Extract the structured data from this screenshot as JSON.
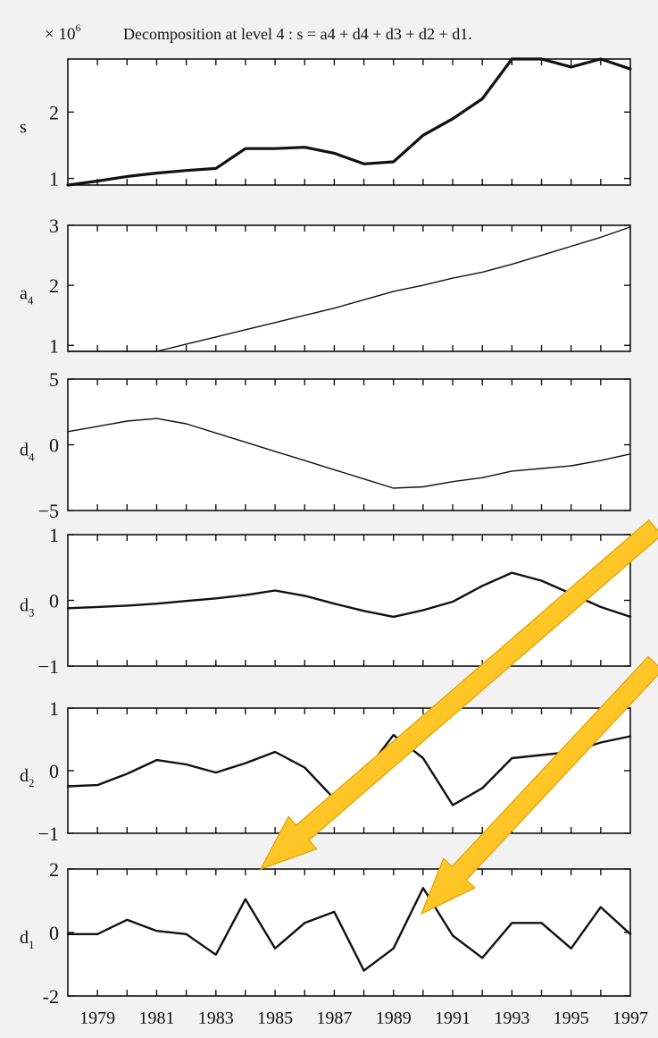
{
  "chart_data": {
    "type": "line",
    "title": "Decomposition at level 4 : s = a4 + d4 + d3 + d2 + d1.",
    "scale_label": {
      "base": "× 10",
      "exp": "6"
    },
    "x_ticks": [
      "1979",
      "1981",
      "1983",
      "1985",
      "1987",
      "1989",
      "1991",
      "1993",
      "1995",
      "1997"
    ],
    "x": [
      1978,
      1979,
      1980,
      1981,
      1982,
      1983,
      1984,
      1985,
      1986,
      1987,
      1988,
      1989,
      1990,
      1991,
      1992,
      1993,
      1994,
      1995,
      1996,
      1997
    ],
    "panels": [
      {
        "name": "s",
        "sub": "",
        "ylim": [
          0.9,
          2.8
        ],
        "yticks": [
          {
            "v": 1,
            "label": "1"
          },
          {
            "v": 2,
            "label": "2"
          }
        ],
        "values": [
          0.9,
          0.96,
          1.03,
          1.08,
          1.12,
          1.15,
          1.45,
          1.45,
          1.47,
          1.38,
          1.22,
          1.25,
          1.65,
          1.9,
          2.2,
          2.8,
          2.8,
          2.68,
          2.8,
          2.65
        ]
      },
      {
        "name": "a",
        "sub": "4",
        "ylim": [
          0.9,
          3.0
        ],
        "yticks": [
          {
            "v": 1,
            "label": "1"
          },
          {
            "v": 2,
            "label": "2"
          },
          {
            "v": 3,
            "label": "3"
          }
        ],
        "values": [
          0.9,
          0.9,
          0.9,
          0.9,
          1.02,
          1.14,
          1.26,
          1.38,
          1.5,
          1.62,
          1.76,
          1.9,
          2.0,
          2.12,
          2.22,
          2.35,
          2.5,
          2.65,
          2.8,
          2.97
        ]
      },
      {
        "name": "d",
        "sub": "4",
        "ylim": [
          -5,
          5
        ],
        "yticks": [
          {
            "v": 5,
            "label": "5"
          },
          {
            "v": 0,
            "label": "0"
          },
          {
            "v": -5,
            "label": "−5"
          }
        ],
        "values": [
          1.0,
          1.4,
          1.8,
          2.0,
          1.6,
          0.9,
          0.2,
          -0.5,
          -1.2,
          -1.9,
          -2.6,
          -3.3,
          -3.2,
          -2.8,
          -2.5,
          -2.0,
          -1.8,
          -1.6,
          -1.2,
          -0.7
        ]
      },
      {
        "name": "d",
        "sub": "3",
        "ylim": [
          -1,
          1
        ],
        "yticks": [
          {
            "v": 1,
            "label": "1"
          },
          {
            "v": 0,
            "label": "0"
          },
          {
            "v": -1,
            "label": "−1"
          }
        ],
        "values": [
          -0.12,
          -0.1,
          -0.08,
          -0.05,
          -0.01,
          0.03,
          0.08,
          0.15,
          0.07,
          -0.05,
          -0.16,
          -0.25,
          -0.15,
          -0.02,
          0.22,
          0.42,
          0.3,
          0.1,
          -0.1,
          -0.25
        ]
      },
      {
        "name": "d",
        "sub": "2",
        "ylim": [
          -1,
          1
        ],
        "yticks": [
          {
            "v": 1,
            "label": "1"
          },
          {
            "v": 0,
            "label": "0"
          },
          {
            "v": -1,
            "label": "−1"
          }
        ],
        "values": [
          -0.25,
          -0.23,
          -0.05,
          0.17,
          0.1,
          -0.03,
          0.12,
          0.3,
          0.05,
          -0.45,
          -0.05,
          0.57,
          0.2,
          -0.55,
          -0.28,
          0.2,
          0.25,
          0.3,
          0.45,
          0.55
        ]
      },
      {
        "name": "d",
        "sub": "1",
        "ylim": [
          -2,
          2
        ],
        "yticks": [
          {
            "v": 2,
            "label": "2"
          },
          {
            "v": 0,
            "label": "0"
          },
          {
            "v": -2,
            "label": "-2"
          }
        ],
        "values": [
          -0.05,
          -0.05,
          0.4,
          0.05,
          -0.05,
          -0.7,
          1.05,
          -0.5,
          0.3,
          0.65,
          -1.2,
          -0.5,
          1.4,
          -0.1,
          -0.8,
          0.3,
          0.3,
          -0.5,
          0.8,
          -0.05
        ]
      }
    ],
    "annotations": [
      {
        "type": "arrow",
        "color": "#ffc000",
        "points_to": "d1 panel peak near 1984"
      },
      {
        "type": "arrow",
        "color": "#ffc000",
        "points_to": "d1 panel peak at 1990"
      }
    ]
  }
}
